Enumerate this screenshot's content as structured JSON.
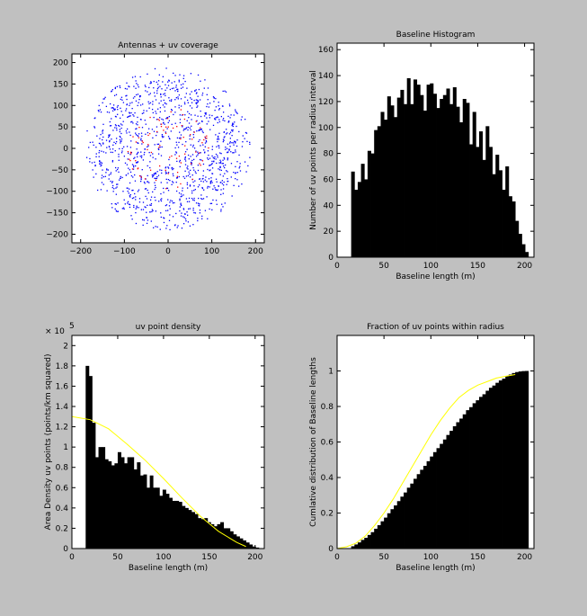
{
  "figure": {
    "background": "#c0c0c0",
    "axes_background": "#ffffff"
  },
  "chart_data": [
    {
      "type": "scatter",
      "title": "Antennas + uv coverage",
      "xlabel": "",
      "ylabel": "",
      "xlim": [
        -220,
        220
      ],
      "ylim": [
        -220,
        220
      ],
      "xticks": [
        -200,
        -100,
        0,
        100,
        200
      ],
      "yticks": [
        -200,
        -150,
        -100,
        -50,
        0,
        50,
        100,
        150,
        200
      ],
      "xtick_labels": [
        "−200",
        "−100",
        "0",
        "100",
        "200"
      ],
      "ytick_labels": [
        "−200",
        "−150",
        "−100",
        "−50",
        "0",
        "50",
        "100",
        "150",
        "200"
      ],
      "grid": false,
      "series": [
        {
          "role": "uv-points",
          "color": "#0000ff",
          "count": 1200,
          "inner_radius": 12,
          "outer_radius": 190,
          "density_profile": [
            [
              20,
              160
            ],
            [
              60,
              135
            ],
            [
              100,
              120
            ],
            [
              140,
              90
            ],
            [
              175,
              30
            ],
            [
              190,
              5
            ]
          ]
        },
        {
          "role": "antennas",
          "color": "#ff0000",
          "count": 80,
          "inner_radius": 10,
          "outer_radius": 95
        }
      ]
    },
    {
      "type": "bar",
      "title": "Baseline Histogram",
      "xlabel": "Baseline length (m)",
      "ylabel": "Number of uv points  per radius interval",
      "xlim": [
        0,
        210
      ],
      "ylim": [
        0,
        165
      ],
      "xticks": [
        0,
        50,
        100,
        150,
        200
      ],
      "yticks": [
        0,
        20,
        40,
        60,
        80,
        100,
        120,
        140,
        160
      ],
      "bar_color": "#000000",
      "grid": false,
      "bin_start": 15,
      "bin_width": 3.5,
      "values": [
        66,
        52,
        58,
        72,
        60,
        82,
        80,
        98,
        101,
        112,
        106,
        124,
        117,
        108,
        123,
        129,
        118,
        138,
        118,
        137,
        133,
        125,
        113,
        133,
        134,
        126,
        115,
        122,
        125,
        130,
        118,
        131,
        116,
        104,
        122,
        119,
        87,
        112,
        85,
        97,
        75,
        101,
        85,
        64,
        79,
        67,
        52,
        70,
        47,
        43,
        28,
        18,
        10,
        4
      ]
    },
    {
      "type": "bar",
      "title": "uv point density",
      "xlabel": "Baseline length (m)",
      "ylabel": "Area Density uv points (points/km squared)",
      "exponent_label": "× 10",
      "exponent": "5",
      "xlim": [
        0,
        210
      ],
      "ylim": [
        0,
        2.1
      ],
      "xticks": [
        0,
        50,
        100,
        150,
        200
      ],
      "yticks": [
        0,
        0.2,
        0.4,
        0.6,
        0.8,
        1,
        1.2,
        1.4,
        1.6,
        1.8,
        2
      ],
      "bar_color": "#000000",
      "grid": false,
      "bin_start": 15,
      "bin_width": 3.5,
      "values": [
        1.8,
        1.7,
        1.24,
        0.9,
        1.0,
        1.0,
        0.88,
        0.86,
        0.82,
        0.84,
        0.95,
        0.9,
        0.84,
        0.9,
        0.9,
        0.78,
        0.85,
        0.72,
        0.73,
        0.6,
        0.72,
        0.6,
        0.6,
        0.52,
        0.58,
        0.54,
        0.5,
        0.47,
        0.47,
        0.46,
        0.42,
        0.4,
        0.38,
        0.36,
        0.34,
        0.3,
        0.29,
        0.3,
        0.26,
        0.24,
        0.22,
        0.24,
        0.26,
        0.2,
        0.2,
        0.17,
        0.14,
        0.12,
        0.1,
        0.08,
        0.06,
        0.04,
        0.02,
        0.01
      ],
      "fit_line": {
        "color": "#ffff00",
        "x": [
          0,
          20,
          40,
          60,
          80,
          100,
          120,
          140,
          160,
          180,
          190
        ],
        "y": [
          1.3,
          1.27,
          1.18,
          1.03,
          0.87,
          0.69,
          0.5,
          0.32,
          0.17,
          0.06,
          0.02
        ]
      }
    },
    {
      "type": "bar",
      "title": "Fraction of uv points within radius",
      "xlabel": "Baseline length (m)",
      "ylabel": "Cumlative distribution of Baseline lengths",
      "xlim": [
        0,
        210
      ],
      "ylim": [
        0,
        1.2
      ],
      "xticks": [
        0,
        50,
        100,
        150,
        200
      ],
      "yticks": [
        0,
        0.2,
        0.4,
        0.6,
        0.8,
        1
      ],
      "bar_color": "#000000",
      "grid": false,
      "cumulative_of": 1,
      "bin_start": 15,
      "bin_width": 3.5,
      "fit_line": {
        "color": "#ffff00",
        "x": [
          0,
          10,
          20,
          30,
          40,
          50,
          60,
          70,
          80,
          90,
          100,
          110,
          120,
          130,
          140,
          150,
          160,
          170,
          180,
          190
        ],
        "y": [
          0,
          0.01,
          0.03,
          0.07,
          0.13,
          0.2,
          0.28,
          0.37,
          0.46,
          0.55,
          0.64,
          0.72,
          0.79,
          0.85,
          0.89,
          0.92,
          0.94,
          0.96,
          0.97,
          0.98
        ]
      }
    }
  ]
}
